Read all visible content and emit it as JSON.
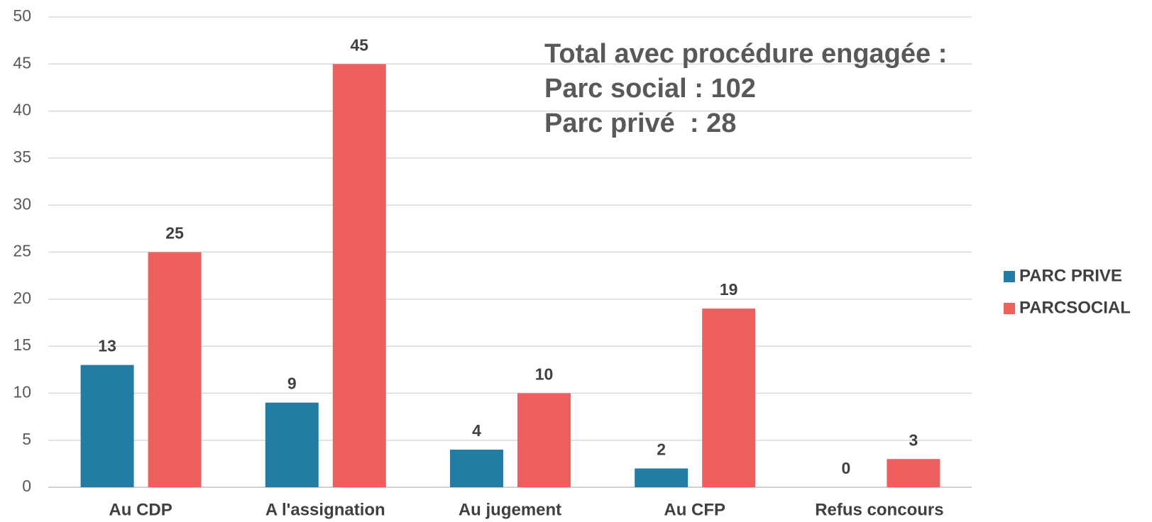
{
  "chart_data": {
    "type": "bar",
    "categories": [
      "Au CDP",
      "A l'assignation",
      "Au jugement",
      "Au CFP",
      "Refus concours"
    ],
    "series": [
      {
        "name": "PARC PRIVE",
        "color": "#237ca4",
        "values": [
          13,
          9,
          4,
          2,
          0
        ]
      },
      {
        "name": "PARCSOCIAL",
        "color": "#ee5f5e",
        "values": [
          25,
          45,
          10,
          19,
          3
        ]
      }
    ],
    "ylim": [
      0,
      50
    ],
    "yticks": [
      0,
      5,
      10,
      15,
      20,
      25,
      30,
      35,
      40,
      45,
      50
    ],
    "grid": true,
    "legend": "right",
    "annotations": [
      "Total avec procédure engagée :",
      "Parc social : 102",
      "Parc privé  : 28"
    ]
  }
}
